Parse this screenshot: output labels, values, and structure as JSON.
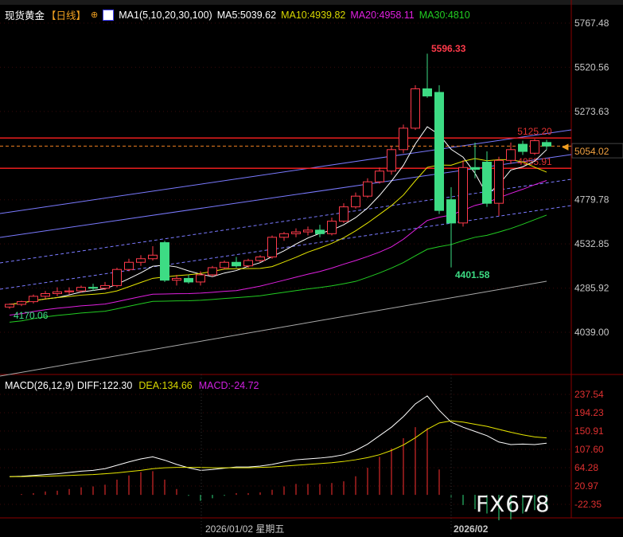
{
  "header": {
    "symbol": "现货黄金",
    "period": "【日线】",
    "indicator": "MA1(5,10,20,30,100)",
    "ma5": "MA5:5039.62",
    "ma10": "MA10:4939.82",
    "ma20": "MA20:4958.11",
    "ma30": "MA30:4810"
  },
  "macd_header": {
    "name": "MACD(26,12,9)",
    "diff": "DIFF:122.30",
    "dea": "DEA:134.66",
    "macd": "MACD:-24.72"
  },
  "watermark": "FX678",
  "colors": {
    "up": "#ff3a4a",
    "down": "#3ddc84",
    "ma5": "#ffffff",
    "ma10": "#e6e600",
    "ma20": "#e020e0",
    "ma30": "#22cc22",
    "ma100": "#aaaaaa",
    "channel": "#7a7aff"
  },
  "chart_data": [
    {
      "type": "candlestick",
      "price_axis": [
        "5767.48",
        "5520.56",
        "5273.63",
        "4779.78",
        "4532.85",
        "4285.92",
        "4039.00"
      ],
      "ylim": [
        4039.0,
        5767.48
      ],
      "current_price": "5054.02",
      "levels": [
        {
          "label": "5125.20",
          "value": 5125.2
        },
        {
          "label": "4955.91",
          "value": 4955.91
        }
      ],
      "annotations": {
        "high": "5596.33",
        "low": "4401.58",
        "start_low": "4170.06"
      },
      "ohlc": [
        [
          4180,
          4200,
          4170.06,
          4195
        ],
        [
          4195,
          4215,
          4185,
          4210
        ],
        [
          4210,
          4250,
          4200,
          4240
        ],
        [
          4240,
          4270,
          4225,
          4255
        ],
        [
          4255,
          4290,
          4240,
          4265
        ],
        [
          4265,
          4290,
          4250,
          4270
        ],
        [
          4270,
          4300,
          4260,
          4290
        ],
        [
          4290,
          4310,
          4270,
          4285
        ],
        [
          4285,
          4320,
          4275,
          4300
        ],
        [
          4300,
          4400,
          4290,
          4390
        ],
        [
          4390,
          4450,
          4380,
          4430
        ],
        [
          4430,
          4470,
          4410,
          4450
        ],
        [
          4450,
          4520,
          4440,
          4470
        ],
        [
          4540,
          4550,
          4320,
          4330
        ],
        [
          4330,
          4360,
          4300,
          4340
        ],
        [
          4340,
          4360,
          4310,
          4320
        ],
        [
          4320,
          4380,
          4300,
          4360
        ],
        [
          4360,
          4410,
          4350,
          4400
        ],
        [
          4400,
          4440,
          4390,
          4430
        ],
        [
          4430,
          4460,
          4400,
          4410
        ],
        [
          4410,
          4450,
          4400,
          4440
        ],
        [
          4440,
          4470,
          4430,
          4460
        ],
        [
          4460,
          4580,
          4450,
          4570
        ],
        [
          4570,
          4600,
          4550,
          4590
        ],
        [
          4590,
          4620,
          4570,
          4600
        ],
        [
          4600,
          4630,
          4580,
          4610
        ],
        [
          4610,
          4640,
          4570,
          4590
        ],
        [
          4590,
          4680,
          4580,
          4660
        ],
        [
          4660,
          4760,
          4650,
          4740
        ],
        [
          4740,
          4820,
          4730,
          4800
        ],
        [
          4800,
          4900,
          4790,
          4880
        ],
        [
          4880,
          4960,
          4870,
          4940
        ],
        [
          4940,
          5080,
          4920,
          5060
        ],
        [
          5060,
          5200,
          5040,
          5180
        ],
        [
          5180,
          5420,
          5170,
          5400
        ],
        [
          5400,
          5596.33,
          5350,
          5360
        ],
        [
          5380,
          5420,
          4700,
          4720
        ],
        [
          4780,
          4850,
          4401.58,
          4650
        ],
        [
          4650,
          5000,
          4630,
          4960
        ],
        [
          4960,
          5100,
          4900,
          4950
        ],
        [
          4990,
          5050,
          4740,
          4760
        ],
        [
          4760,
          5020,
          4690,
          5000
        ],
        [
          5000,
          5100,
          4980,
          5060
        ],
        [
          5090,
          5110,
          5030,
          5050
        ],
        [
          5040,
          5120,
          5030,
          5110
        ],
        [
          5100,
          5115,
          5060,
          5080
        ]
      ]
    },
    {
      "type": "line",
      "name": "MACD",
      "axis": [
        "237.54",
        "194.23",
        "150.91",
        "107.60",
        "64.28",
        "20.97",
        "-22.35"
      ],
      "ylim": [
        -22.35,
        237.54
      ],
      "diff": [
        43,
        44,
        46,
        48,
        50,
        53,
        56,
        58,
        62,
        70,
        78,
        85,
        90,
        82,
        72,
        64,
        58,
        60,
        63,
        66,
        66,
        68,
        72,
        78,
        83,
        85,
        87,
        90,
        95,
        105,
        120,
        140,
        160,
        185,
        215,
        234,
        200,
        172,
        160,
        150,
        140,
        125,
        119,
        120,
        119,
        122.3
      ],
      "dea": [
        43,
        43,
        44,
        44,
        45,
        46,
        47,
        48,
        50,
        52,
        55,
        58,
        62,
        64,
        65,
        65,
        65,
        64,
        64,
        64,
        64,
        65,
        66,
        68,
        70,
        72,
        74,
        76,
        79,
        83,
        88,
        95,
        105,
        118,
        135,
        155,
        170,
        175,
        172,
        167,
        162,
        155,
        148,
        142,
        137,
        134.66
      ]
    }
  ],
  "dates": [
    "2026/01/02 星期五",
    "2026/02"
  ]
}
